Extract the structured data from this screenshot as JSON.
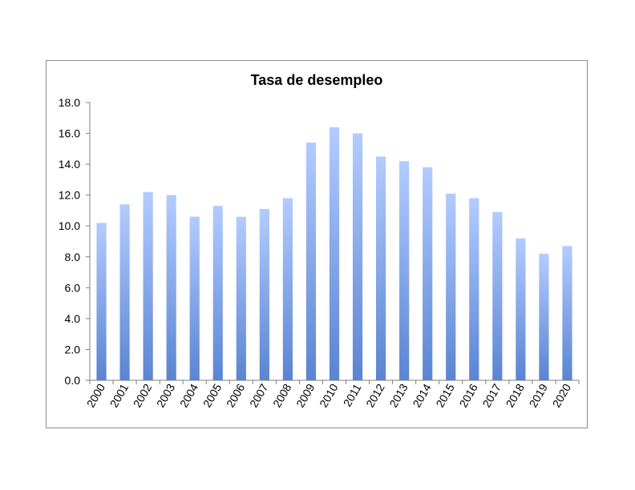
{
  "chart_data": {
    "type": "bar",
    "title": "Tasa de desempleo",
    "xlabel": "",
    "ylabel": "",
    "categories": [
      "2000",
      "2001",
      "2002",
      "2003",
      "2004",
      "2005",
      "2006",
      "2007",
      "2008",
      "2009",
      "2010",
      "2011",
      "2012",
      "2013",
      "2014",
      "2015",
      "2016",
      "2017",
      "2018",
      "2019",
      "2020"
    ],
    "values": [
      10.2,
      11.4,
      12.2,
      12.0,
      10.6,
      11.3,
      10.6,
      11.1,
      11.8,
      15.4,
      16.4,
      16.0,
      14.5,
      14.2,
      13.8,
      12.1,
      11.8,
      10.9,
      9.2,
      8.2,
      8.7
    ],
    "ylim": [
      0,
      18
    ],
    "yticks": [
      "0.0",
      "2.0",
      "4.0",
      "6.0",
      "8.0",
      "10.0",
      "12.0",
      "14.0",
      "16.0",
      "18.0"
    ],
    "grid": false,
    "legend": "none",
    "bar_color_top": "#b3ccff",
    "bar_color_bottom": "#5a84d2"
  }
}
